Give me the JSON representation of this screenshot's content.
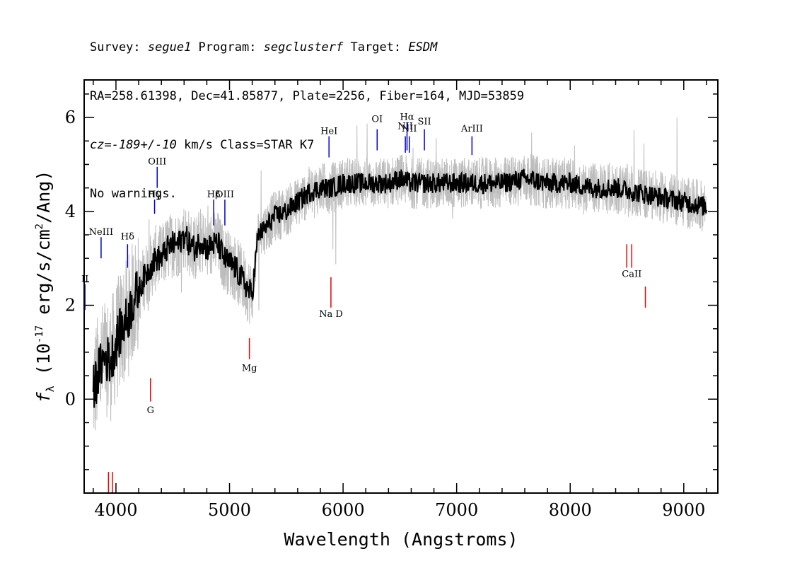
{
  "header": {
    "line1": {
      "survey_label": "Survey: ",
      "survey": "segue1",
      "program_label": " Program: ",
      "program": "segclusterf",
      "target_label": " Target: ",
      "target": "ESDM"
    },
    "line2": "RA=258.61398, Dec=41.85877, Plate=2256, Fiber=164, MJD=53859",
    "line3": {
      "cz_label": "cz=",
      "cz": "-189+/-10",
      "cz_unit": " km/s Class=STAR K7"
    },
    "line4": "No warnings."
  },
  "chart_data": {
    "type": "line",
    "xlabel": "Wavelength (Angstroms)",
    "ylabel": "f_λ (10^-17 erg/s/cm^2/Ang)",
    "ylabel_parts": {
      "symbol": "f",
      "sub": "λ",
      "pre": " (10",
      "exp1": "-17",
      "mid": " erg/s/cm",
      "exp2": "2",
      "post": "/Ang)"
    },
    "xlim": [
      3720,
      9300
    ],
    "ylim": [
      -2.0,
      6.8
    ],
    "x_ticks": [
      4000,
      5000,
      6000,
      7000,
      8000,
      9000
    ],
    "y_ticks": [
      0,
      2,
      4,
      6
    ],
    "series": [
      {
        "role": "raw",
        "color": "#bdbdbd",
        "x": [
          3800,
          3850,
          3900,
          3950,
          4000,
          4050,
          4100,
          4150,
          4200,
          4250,
          4300,
          4350,
          4400,
          4450,
          4500,
          4550,
          4600,
          4650,
          4700,
          4750,
          4800,
          4850,
          4900,
          4950,
          5000,
          5050,
          5100,
          5150,
          5200,
          5250,
          5300,
          5400,
          5500,
          5600,
          5700,
          5800,
          5900,
          6000,
          6100,
          6200,
          6300,
          6400,
          6500,
          6600,
          6700,
          6800,
          6900,
          7000,
          7200,
          7400,
          7600,
          7800,
          8000,
          8200,
          8400,
          8600,
          8800,
          9000,
          9200
        ],
        "y": [
          0.2,
          0.6,
          0.9,
          0.8,
          1.2,
          1.5,
          1.7,
          2.1,
          2.3,
          2.6,
          2.8,
          3.0,
          3.0,
          3.2,
          3.3,
          3.3,
          3.5,
          3.3,
          3.2,
          3.4,
          3.2,
          3.3,
          3.3,
          3.0,
          2.9,
          2.8,
          2.6,
          2.4,
          2.2,
          3.5,
          3.6,
          3.9,
          4.0,
          4.2,
          4.4,
          4.5,
          4.5,
          4.6,
          4.6,
          4.6,
          4.6,
          4.6,
          4.7,
          4.6,
          4.6,
          4.6,
          4.6,
          4.6,
          4.6,
          4.6,
          4.7,
          4.6,
          4.6,
          4.5,
          4.5,
          4.4,
          4.3,
          4.2,
          4.1
        ]
      },
      {
        "role": "smoothed",
        "color": "#000000",
        "x": [
          3800,
          3850,
          3900,
          3950,
          4000,
          4050,
          4100,
          4150,
          4200,
          4250,
          4300,
          4350,
          4400,
          4450,
          4500,
          4550,
          4600,
          4650,
          4700,
          4750,
          4800,
          4850,
          4900,
          4950,
          5000,
          5050,
          5100,
          5150,
          5200,
          5250,
          5300,
          5400,
          5500,
          5600,
          5700,
          5800,
          5900,
          6000,
          6100,
          6200,
          6300,
          6400,
          6500,
          6600,
          6700,
          6800,
          6900,
          7000,
          7200,
          7400,
          7600,
          7800,
          8000,
          8200,
          8400,
          8600,
          8800,
          9000,
          9200
        ],
        "y": [
          0.2,
          0.6,
          0.9,
          0.8,
          1.2,
          1.5,
          1.7,
          2.1,
          2.3,
          2.6,
          2.8,
          3.0,
          3.0,
          3.2,
          3.3,
          3.3,
          3.5,
          3.3,
          3.2,
          3.4,
          3.2,
          3.3,
          3.3,
          3.0,
          2.9,
          2.8,
          2.6,
          2.4,
          2.2,
          3.5,
          3.6,
          3.9,
          4.0,
          4.2,
          4.4,
          4.5,
          4.5,
          4.6,
          4.6,
          4.6,
          4.6,
          4.6,
          4.7,
          4.6,
          4.6,
          4.6,
          4.6,
          4.6,
          4.6,
          4.6,
          4.7,
          4.6,
          4.6,
          4.5,
          4.5,
          4.4,
          4.3,
          4.2,
          4.1
        ]
      }
    ],
    "emission_lines": [
      {
        "label": "II",
        "x": 3727,
        "y0": 1.9,
        "y1": 2.45,
        "label_y": 2.5,
        "sub": false
      },
      {
        "label": "NeIII",
        "x": 3869,
        "y0": 3.0,
        "y1": 3.45,
        "label_y": 3.5
      },
      {
        "label": "Hδ",
        "x": 4102,
        "y0": 2.8,
        "y1": 3.3,
        "label_y": 3.4
      },
      {
        "label": "Hγ",
        "x": 4340,
        "y0": 3.95,
        "y1": 4.25,
        "label_y": 4.3
      },
      {
        "label": "OIII",
        "x": 4363,
        "y0": 4.5,
        "y1": 4.95,
        "label_y": 5.0
      },
      {
        "label": "Hβ",
        "x": 4861,
        "y0": 3.7,
        "y1": 4.25,
        "label_y": 4.3
      },
      {
        "label": "OIII",
        "x": 4959,
        "y0": 3.7,
        "y1": 4.25,
        "label_y": 4.3
      },
      {
        "label": "HeI",
        "x": 5876,
        "y0": 5.15,
        "y1": 5.6,
        "label_y": 5.65
      },
      {
        "label": "OI",
        "x": 6300,
        "y0": 5.3,
        "y1": 5.75,
        "label_y": 5.9
      },
      {
        "label": "NII",
        "x": 6548,
        "y0": 5.25,
        "y1": 5.6,
        "label_y": 5.75
      },
      {
        "label": "Hα",
        "x": 6563,
        "y0": 5.3,
        "y1": 5.9,
        "label_y": 5.95
      },
      {
        "label": "SII",
        "x": 6716,
        "y0": 5.3,
        "y1": 5.75,
        "label_y": 5.85
      },
      {
        "label": "NII",
        "x": 6583,
        "y0": 5.25,
        "y1": 5.6,
        "label_y": 5.7
      },
      {
        "label": "ArIII",
        "x": 7135,
        "y0": 5.2,
        "y1": 5.6,
        "label_y": 5.7
      }
    ],
    "absorption_lines": [
      {
        "label": "G",
        "x": 4304,
        "y0": 0.45,
        "y1": -0.05,
        "label_y": -0.3
      },
      {
        "label": "Mg",
        "x": 5175,
        "y0": 1.3,
        "y1": 0.85,
        "label_y": 0.6
      },
      {
        "label": "Na D",
        "x": 5893,
        "y0": 2.6,
        "y1": 1.95,
        "label_y": 1.75
      },
      {
        "label": "CaII",
        "x": 8542,
        "y0": 3.3,
        "y1": 2.8,
        "label_y": 2.6
      },
      {
        "label": "",
        "x": 8498,
        "y0": 3.3,
        "y1": 2.8
      },
      {
        "label": "",
        "x": 8662,
        "y0": 2.4,
        "y1": 1.95
      },
      {
        "label": "",
        "x": 3934,
        "y0": -1.55,
        "y1": -2.0
      },
      {
        "label": "",
        "x": 3969,
        "y0": -1.55,
        "y1": -2.0
      }
    ],
    "emission_color": "#0000cc",
    "absorption_color": "#ee0000"
  }
}
